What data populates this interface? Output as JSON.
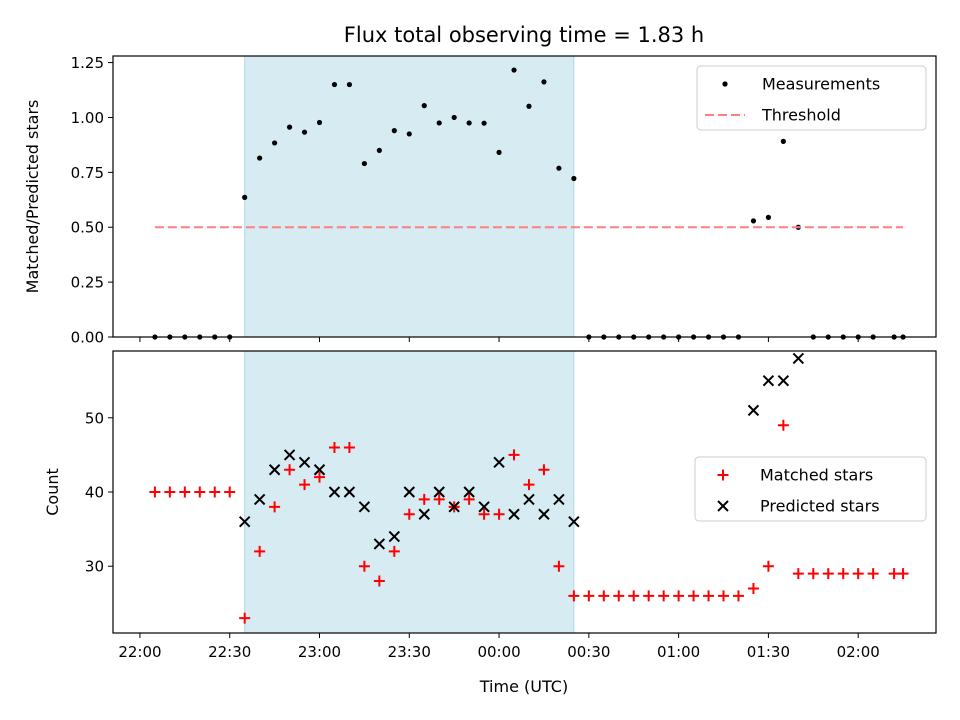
{
  "figure": {
    "title": "Flux total observing time = 1.83 h",
    "xlabel": "Time (UTC)"
  },
  "colors": {
    "shade": "#add8e6",
    "measurement": "#000000",
    "threshold": "#ff7f7f",
    "matched": "#ff0000",
    "predicted": "#000000"
  },
  "chart_data": [
    {
      "type": "scatter",
      "title": "Flux total observing time = 1.83 h",
      "ylabel": "Matched/Predicted stars",
      "xlabel": "Time (UTC)",
      "xlim": [
        "21:51",
        "02:26"
      ],
      "ylim": [
        0,
        1.28
      ],
      "x_ticks": [
        "22:00",
        "22:30",
        "23:00",
        "23:30",
        "00:00",
        "00:30",
        "01:00",
        "01:30",
        "02:00"
      ],
      "y_ticks": [
        "0.00",
        "0.25",
        "0.50",
        "0.75",
        "1.00",
        "1.25"
      ],
      "shaded_span": [
        "22:35",
        "00:25"
      ],
      "legend": "top-right",
      "series": [
        {
          "name": "Measurements",
          "marker": "dot",
          "points": [
            [
              "22:05",
              0
            ],
            [
              "22:10",
              0
            ],
            [
              "22:15",
              0
            ],
            [
              "22:20",
              0
            ],
            [
              "22:25",
              0
            ],
            [
              "22:30",
              0
            ],
            [
              "22:35",
              0.636
            ],
            [
              "22:40",
              0.815
            ],
            [
              "22:45",
              0.884
            ],
            [
              "22:50",
              0.956
            ],
            [
              "22:55",
              0.933
            ],
            [
              "23:00",
              0.977
            ],
            [
              "23:05",
              1.15
            ],
            [
              "23:10",
              1.15
            ],
            [
              "23:15",
              0.79
            ],
            [
              "23:20",
              0.85
            ],
            [
              "23:25",
              0.94
            ],
            [
              "23:30",
              0.925
            ],
            [
              "23:35",
              1.054
            ],
            [
              "23:40",
              0.975
            ],
            [
              "23:45",
              1.0
            ],
            [
              "23:50",
              0.975
            ],
            [
              "23:55",
              0.974
            ],
            [
              "00:00",
              0.841
            ],
            [
              "00:05",
              1.216
            ],
            [
              "00:10",
              1.051
            ],
            [
              "00:15",
              1.162
            ],
            [
              "00:20",
              0.769
            ],
            [
              "00:25",
              0.722
            ],
            [
              "00:30",
              0
            ],
            [
              "00:35",
              0
            ],
            [
              "00:40",
              0
            ],
            [
              "00:45",
              0
            ],
            [
              "00:50",
              0
            ],
            [
              "00:55",
              0
            ],
            [
              "01:00",
              0
            ],
            [
              "01:05",
              0
            ],
            [
              "01:10",
              0
            ],
            [
              "01:15",
              0
            ],
            [
              "01:20",
              0
            ],
            [
              "01:25",
              0.529
            ],
            [
              "01:30",
              0.545
            ],
            [
              "01:35",
              0.891
            ],
            [
              "01:40",
              0.5
            ],
            [
              "01:45",
              0
            ],
            [
              "01:50",
              0
            ],
            [
              "01:55",
              0
            ],
            [
              "02:00",
              0
            ],
            [
              "02:05",
              0
            ],
            [
              "02:12",
              0
            ],
            [
              "02:15",
              0
            ]
          ]
        },
        {
          "name": "Threshold",
          "marker": "dashed-line",
          "points": [
            [
              "22:05",
              0.5
            ],
            [
              "02:15",
              0.5
            ]
          ]
        }
      ]
    },
    {
      "type": "scatter",
      "ylabel": "Count",
      "xlabel": "Time (UTC)",
      "xlim": [
        "21:51",
        "02:26"
      ],
      "ylim": [
        21,
        59
      ],
      "x_ticks": [
        "22:00",
        "22:30",
        "23:00",
        "23:30",
        "00:00",
        "00:30",
        "01:00",
        "01:30",
        "02:00"
      ],
      "y_ticks": [
        "30",
        "40",
        "50"
      ],
      "shaded_span": [
        "22:35",
        "00:25"
      ],
      "legend": "center-right",
      "series": [
        {
          "name": "Matched stars",
          "marker": "plus",
          "points": [
            [
              "22:05",
              40
            ],
            [
              "22:10",
              40
            ],
            [
              "22:15",
              40
            ],
            [
              "22:20",
              40
            ],
            [
              "22:25",
              40
            ],
            [
              "22:30",
              40
            ],
            [
              "22:35",
              23
            ],
            [
              "22:40",
              32
            ],
            [
              "22:45",
              38
            ],
            [
              "22:50",
              43
            ],
            [
              "22:55",
              41
            ],
            [
              "23:00",
              42
            ],
            [
              "23:05",
              46
            ],
            [
              "23:10",
              46
            ],
            [
              "23:15",
              30
            ],
            [
              "23:20",
              28
            ],
            [
              "23:25",
              32
            ],
            [
              "23:30",
              37
            ],
            [
              "23:35",
              39
            ],
            [
              "23:40",
              39
            ],
            [
              "23:45",
              38
            ],
            [
              "23:50",
              39
            ],
            [
              "23:55",
              37
            ],
            [
              "00:00",
              37
            ],
            [
              "00:05",
              45
            ],
            [
              "00:10",
              41
            ],
            [
              "00:15",
              43
            ],
            [
              "00:20",
              30
            ],
            [
              "00:25",
              26
            ],
            [
              "00:30",
              26
            ],
            [
              "00:35",
              26
            ],
            [
              "00:40",
              26
            ],
            [
              "00:45",
              26
            ],
            [
              "00:50",
              26
            ],
            [
              "00:55",
              26
            ],
            [
              "01:00",
              26
            ],
            [
              "01:05",
              26
            ],
            [
              "01:10",
              26
            ],
            [
              "01:15",
              26
            ],
            [
              "01:20",
              26
            ],
            [
              "01:25",
              27
            ],
            [
              "01:30",
              30
            ],
            [
              "01:35",
              49
            ],
            [
              "01:40",
              29
            ],
            [
              "01:45",
              29
            ],
            [
              "01:50",
              29
            ],
            [
              "01:55",
              29
            ],
            [
              "02:00",
              29
            ],
            [
              "02:05",
              29
            ],
            [
              "02:12",
              29
            ],
            [
              "02:15",
              29
            ]
          ]
        },
        {
          "name": "Predicted stars",
          "marker": "x",
          "points": [
            [
              "22:35",
              36
            ],
            [
              "22:40",
              39
            ],
            [
              "22:45",
              43
            ],
            [
              "22:50",
              45
            ],
            [
              "22:55",
              44
            ],
            [
              "23:00",
              43
            ],
            [
              "23:05",
              40
            ],
            [
              "23:10",
              40
            ],
            [
              "23:15",
              38
            ],
            [
              "23:20",
              33
            ],
            [
              "23:25",
              34
            ],
            [
              "23:30",
              40
            ],
            [
              "23:35",
              37
            ],
            [
              "23:40",
              40
            ],
            [
              "23:45",
              38
            ],
            [
              "23:50",
              40
            ],
            [
              "23:55",
              38
            ],
            [
              "00:00",
              44
            ],
            [
              "00:05",
              37
            ],
            [
              "00:10",
              39
            ],
            [
              "00:15",
              37
            ],
            [
              "00:20",
              39
            ],
            [
              "00:25",
              36
            ],
            [
              "01:25",
              51
            ],
            [
              "01:30",
              55
            ],
            [
              "01:35",
              55
            ],
            [
              "01:40",
              58
            ]
          ]
        }
      ]
    }
  ]
}
